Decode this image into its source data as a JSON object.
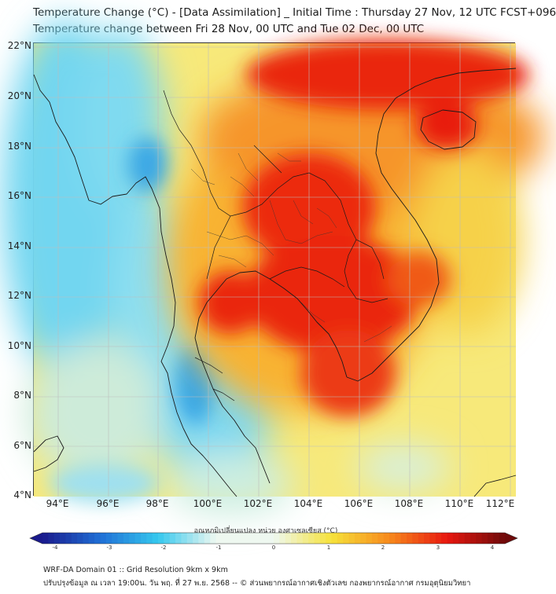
{
  "header": {
    "title_line1": "Temperature Change (°C) - [Data Assimilation] _ Initial Time : Thursday 27 Nov, 12 UTC FCST+096",
    "title_line2": "Temperature change between Fri 28 Nov, 00 UTC and Tue 02 Dec, 00 UTC"
  },
  "map": {
    "lat_labels": [
      "22°N",
      "20°N",
      "18°N",
      "16°N",
      "14°N",
      "12°N",
      "10°N",
      "8°N",
      "6°N",
      "4°N"
    ],
    "lon_labels": [
      "94°E",
      "96°E",
      "98°E",
      "100°E",
      "102°E",
      "104°E",
      "106°E",
      "108°E",
      "110°E",
      "112°E"
    ],
    "lat_range": [
      4,
      22
    ],
    "lon_range": [
      93,
      112.2
    ],
    "grid": true
  },
  "colorbar": {
    "title": "อุณหภูมิเปลี่ยนแปลง หน่วย องศาเซลเซียส (°C)",
    "ticks": [
      "-4",
      "-3",
      "-2",
      "-1",
      "0",
      "1",
      "2",
      "3",
      "4"
    ],
    "range": [
      -4,
      4
    ],
    "colors": {
      "dark_blue": "#1a1a8c",
      "blue": "#1f6fd6",
      "cyan": "#35c8ee",
      "light": "#eef8f0",
      "yellow": "#f6e23a",
      "orange": "#f78a1c",
      "red": "#e8170f",
      "dark_red": "#6e0a0a"
    }
  },
  "footer": {
    "line1": "WRF-DA Domain 01 :: Grid Resolution 9km x 9km",
    "line2": "ปรับปรุงข้อมูล ณ เวลา 19:00น. วัน พฤ. ที่ 27 พ.ย. 2568 -- © ส่วนพยากรณ์อากาศเชิงตัวเลข กองพยากรณ์อากาศ กรมอุตุนิยมวิทยา"
  }
}
